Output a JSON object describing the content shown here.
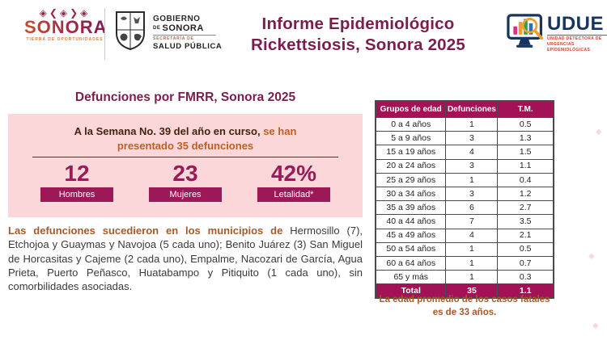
{
  "header": {
    "sonora_logo": {
      "glyphs": "◈❮◈❯◈",
      "name": "SONORA",
      "tagline": "TIERRA DE OPORTUNIDADES"
    },
    "gobierno_logo": {
      "line1": "GOBIERNO",
      "line2_prefix": "DE ",
      "line2": "SONORA",
      "dept_line1": "SECRETARÍA DE",
      "dept_line2": "SALUD PÚBLICA"
    },
    "title_line1": "Informe Epidemiológico",
    "title_line2": "Rickettsiosis, Sonora 2025",
    "udue_logo": {
      "name": "UDUE",
      "subtitle_line1": "UNIDAD DETECTORA DE",
      "subtitle_line2": "URGENCIAS EPIDEMIOLÓGICAS"
    }
  },
  "left_panel": {
    "title": "Defunciones por FMRR, Sonora 2025",
    "summary": {
      "lead_dark": "A la Semana No. 39 del año en curso,",
      "lead_orange": "se han",
      "line2": "presentado 35 defunciones"
    },
    "stats": [
      {
        "value": "12",
        "label": "Hombres"
      },
      {
        "value": "23",
        "label": "Mujeres"
      },
      {
        "value": "42%",
        "label": "Letalidad*"
      }
    ],
    "paragraph_lead": "Las defunciones sucedieron en los municipios de",
    "paragraph_rest": " Hermosillo (7), Etchojoa y Guaymas y Navojoa (5 cada uno); Benito Juárez (3) San Miguel de Horcasitas y Cajeme (2 cada uno), Empalme, Nacozari de García, Agua Prieta, Puerto Peñasco, Huatabampo y Pitiquito (1 cada uno), sin comorbilidades asociadas."
  },
  "table": {
    "headers": [
      "Grupos de edad",
      "Defunciones",
      "T.M."
    ],
    "rows": [
      [
        "0 a 4 años",
        "1",
        "0.5"
      ],
      [
        "5 a 9 años",
        "3",
        "1.3"
      ],
      [
        "15 a 19 años",
        "4",
        "1.5"
      ],
      [
        "20 a 24 años",
        "3",
        "1.1"
      ],
      [
        "25 a 29 años",
        "1",
        "0.4"
      ],
      [
        "30 a 34 años",
        "3",
        "1.2"
      ],
      [
        "35 a 39 años",
        "6",
        "2.7"
      ],
      [
        "40 a 44 años",
        "7",
        "3.5"
      ],
      [
        "45 a 49 años",
        "4",
        "2.1"
      ],
      [
        "50 a 54 años",
        "1",
        "0.5"
      ],
      [
        "60 a 64 años",
        "1",
        "0.7"
      ],
      [
        "65 y más",
        "1",
        "0.3"
      ]
    ],
    "total_row": [
      "Total",
      "35",
      "1.1"
    ],
    "footnote_line1": "La edad promedio de los casos fatales",
    "footnote_line2": "es de 33 años."
  },
  "decorative": {
    "mark": "◆"
  },
  "colors": {
    "maroon_title": "#7b1e4e",
    "magenta": "#a31257",
    "pink_panel": "#fbd7da",
    "orange_text": "#bf5f26",
    "brown_lead": "#a7592b",
    "dark_brown": "#40250f",
    "udue_navy": "#17365f",
    "udue_red": "#c43f2f"
  }
}
